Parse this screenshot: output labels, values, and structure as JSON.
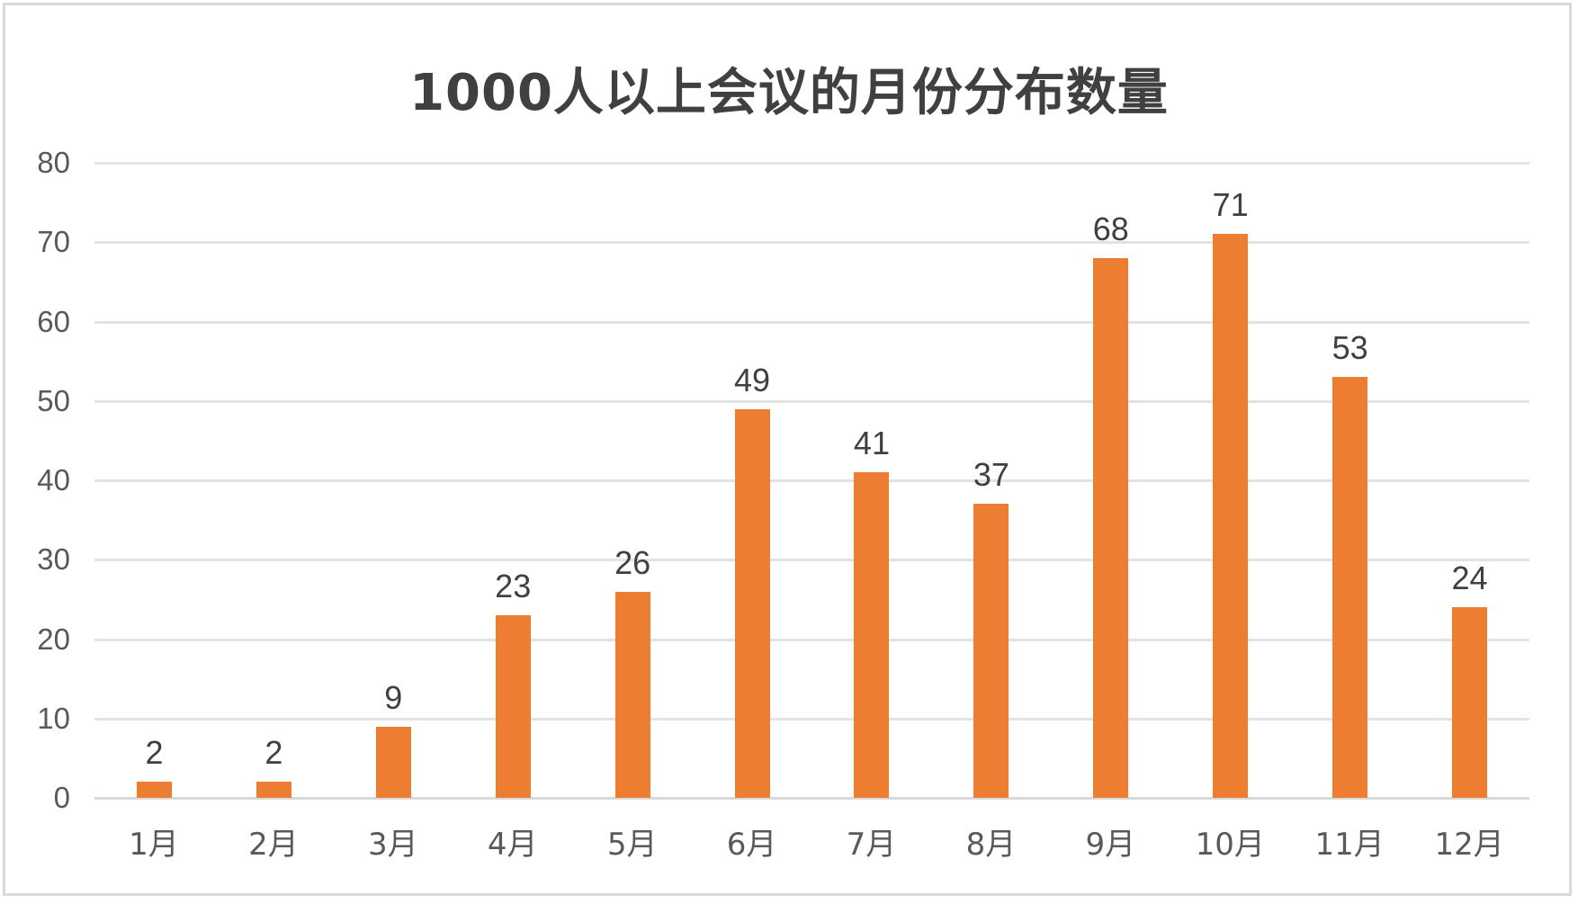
{
  "chart_data": {
    "type": "bar",
    "title": "1000人以上会议的月份分布数量",
    "categories": [
      "1月",
      "2月",
      "3月",
      "4月",
      "5月",
      "6月",
      "7月",
      "8月",
      "9月",
      "10月",
      "11月",
      "12月"
    ],
    "values": [
      2,
      2,
      9,
      23,
      26,
      49,
      41,
      37,
      68,
      71,
      53,
      24
    ],
    "xlabel": "",
    "ylabel": "",
    "ylim": [
      0,
      80
    ],
    "yticks": [
      0,
      10,
      20,
      30,
      40,
      50,
      60,
      70,
      80
    ],
    "grid": true,
    "legend": "none",
    "data_labels": true,
    "bar_color": "#ED7D31"
  },
  "title": "1000人以上会议的月份分布数量",
  "y_axis": {
    "ticks": [
      "0",
      "10",
      "20",
      "30",
      "40",
      "50",
      "60",
      "70",
      "80"
    ]
  },
  "x_axis": {
    "labels": [
      "1月",
      "2月",
      "3月",
      "4月",
      "5月",
      "6月",
      "7月",
      "8月",
      "9月",
      "10月",
      "11月",
      "12月"
    ]
  },
  "data_labels": [
    "2",
    "2",
    "9",
    "23",
    "26",
    "49",
    "41",
    "37",
    "68",
    "71",
    "53",
    "24"
  ],
  "colors": {
    "bar": "#ED7D31",
    "grid": "#D9D9D9",
    "text": "#404040",
    "axis_text": "#595959",
    "border": "#D9D9D9"
  }
}
